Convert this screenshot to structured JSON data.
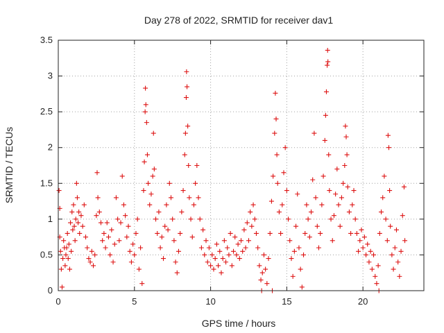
{
  "chart_data": {
    "type": "scatter",
    "title": "Day 278 of 2022, SRMTID for receiver dav1",
    "xlabel": "GPS time / hours",
    "ylabel": "SRMTID / TECUs",
    "xlim": [
      0,
      24
    ],
    "ylim": [
      0,
      3.5
    ],
    "xticks": [
      0,
      5,
      10,
      15,
      20
    ],
    "xtick_labels": [
      "0",
      "5",
      "10",
      "15",
      "20"
    ],
    "yticks": [
      0,
      0.5,
      1,
      1.5,
      2,
      2.5,
      3,
      3.5
    ],
    "ytick_labels": [
      "0",
      "0.5",
      "1",
      "1.5",
      "2",
      "2.5",
      "3",
      "3.5"
    ],
    "grid": true,
    "marker": "+",
    "color": "#dd1111",
    "series": [
      {
        "name": "SRMTID",
        "points": [
          [
            0.05,
            1.4
          ],
          [
            0.1,
            1.15
          ],
          [
            0.1,
            0.75
          ],
          [
            0.15,
            0.55
          ],
          [
            0.2,
            0.3
          ],
          [
            0.25,
            0.05
          ],
          [
            0.3,
            0.45
          ],
          [
            0.35,
            0.7
          ],
          [
            0.4,
            0.6
          ],
          [
            0.45,
            0.35
          ],
          [
            0.5,
            0.5
          ],
          [
            0.55,
            0.6
          ],
          [
            0.6,
            0.8
          ],
          [
            0.65,
            0.45
          ],
          [
            0.7,
            0.65
          ],
          [
            0.75,
            0.3
          ],
          [
            0.8,
            0.95
          ],
          [
            0.85,
            0.55
          ],
          [
            0.9,
            1.1
          ],
          [
            0.95,
            0.85
          ],
          [
            1.0,
            1.2
          ],
          [
            1.05,
            0.9
          ],
          [
            1.1,
            0.7
          ],
          [
            1.15,
            1.0
          ],
          [
            1.2,
            1.5
          ],
          [
            1.25,
            1.3
          ],
          [
            1.3,
            0.95
          ],
          [
            1.35,
            1.1
          ],
          [
            1.4,
            0.8
          ],
          [
            1.5,
            1.05
          ],
          [
            1.6,
            0.9
          ],
          [
            1.7,
            1.2
          ],
          [
            1.8,
            0.75
          ],
          [
            1.9,
            0.6
          ],
          [
            2.0,
            0.45
          ],
          [
            2.1,
            0.4
          ],
          [
            2.2,
            0.55
          ],
          [
            2.3,
            0.35
          ],
          [
            2.4,
            0.5
          ],
          [
            2.5,
            1.05
          ],
          [
            2.55,
            1.65
          ],
          [
            2.6,
            1.3
          ],
          [
            2.7,
            1.1
          ],
          [
            2.8,
            0.95
          ],
          [
            2.9,
            0.7
          ],
          [
            3.0,
            0.8
          ],
          [
            3.1,
            0.6
          ],
          [
            3.2,
            0.95
          ],
          [
            3.3,
            0.75
          ],
          [
            3.4,
            0.5
          ],
          [
            3.5,
            0.85
          ],
          [
            3.6,
            0.4
          ],
          [
            3.7,
            0.65
          ],
          [
            3.8,
            1.3
          ],
          [
            3.9,
            1.0
          ],
          [
            4.0,
            0.7
          ],
          [
            4.1,
            0.95
          ],
          [
            4.2,
            1.6
          ],
          [
            4.3,
            1.2
          ],
          [
            4.4,
            1.05
          ],
          [
            4.5,
            0.75
          ],
          [
            4.6,
            0.9
          ],
          [
            4.7,
            0.55
          ],
          [
            4.8,
            0.4
          ],
          [
            4.9,
            0.65
          ],
          [
            5.0,
            0.5
          ],
          [
            5.1,
            0.8
          ],
          [
            5.2,
            1.0
          ],
          [
            5.3,
            0.3
          ],
          [
            5.4,
            0.6
          ],
          [
            5.5,
            0.1
          ],
          [
            5.6,
            1.4
          ],
          [
            5.65,
            1.8
          ],
          [
            5.7,
            2.5
          ],
          [
            5.72,
            2.83
          ],
          [
            5.75,
            2.6
          ],
          [
            5.8,
            2.35
          ],
          [
            5.85,
            1.9
          ],
          [
            5.9,
            1.5
          ],
          [
            6.0,
            1.2
          ],
          [
            6.1,
            1.35
          ],
          [
            6.2,
            1.6
          ],
          [
            6.25,
            2.2
          ],
          [
            6.3,
            1.7
          ],
          [
            6.4,
            1.0
          ],
          [
            6.5,
            0.8
          ],
          [
            6.6,
            1.1
          ],
          [
            6.7,
            0.6
          ],
          [
            6.8,
            0.75
          ],
          [
            6.9,
            0.45
          ],
          [
            7.0,
            0.9
          ],
          [
            7.1,
            1.2
          ],
          [
            7.2,
            0.85
          ],
          [
            7.3,
            1.5
          ],
          [
            7.4,
            1.3
          ],
          [
            7.5,
            1.0
          ],
          [
            7.6,
            0.7
          ],
          [
            7.7,
            0.4
          ],
          [
            7.8,
            0.25
          ],
          [
            7.9,
            0.55
          ],
          [
            8.0,
            0.8
          ],
          [
            8.1,
            1.1
          ],
          [
            8.2,
            1.4
          ],
          [
            8.3,
            1.9
          ],
          [
            8.35,
            2.2
          ],
          [
            8.4,
            2.7
          ],
          [
            8.42,
            3.06
          ],
          [
            8.45,
            2.85
          ],
          [
            8.5,
            2.3
          ],
          [
            8.55,
            1.75
          ],
          [
            8.6,
            1.3
          ],
          [
            8.7,
            1.0
          ],
          [
            8.8,
            0.75
          ],
          [
            8.9,
            1.2
          ],
          [
            9.0,
            1.5
          ],
          [
            9.1,
            1.75
          ],
          [
            9.2,
            1.3
          ],
          [
            9.3,
            1.0
          ],
          [
            9.4,
            0.6
          ],
          [
            9.5,
            0.85
          ],
          [
            9.6,
            0.5
          ],
          [
            9.7,
            0.7
          ],
          [
            9.8,
            0.4
          ],
          [
            9.9,
            0.6
          ],
          [
            10.0,
            0.35
          ],
          [
            10.1,
            0.5
          ],
          [
            10.2,
            0.3
          ],
          [
            10.3,
            0.45
          ],
          [
            10.4,
            0.65
          ],
          [
            10.5,
            0.35
          ],
          [
            10.6,
            0.55
          ],
          [
            10.7,
            0.25
          ],
          [
            10.8,
            0.45
          ],
          [
            10.9,
            0.7
          ],
          [
            11.0,
            0.4
          ],
          [
            11.1,
            0.6
          ],
          [
            11.2,
            0.5
          ],
          [
            11.3,
            0.8
          ],
          [
            11.4,
            0.35
          ],
          [
            11.5,
            0.55
          ],
          [
            11.6,
            0.75
          ],
          [
            11.7,
            0.5
          ],
          [
            11.8,
            0.65
          ],
          [
            11.9,
            0.45
          ],
          [
            12.0,
            0.7
          ],
          [
            12.1,
            0.55
          ],
          [
            12.2,
            0.85
          ],
          [
            12.3,
            0.6
          ],
          [
            12.4,
            0.95
          ],
          [
            12.5,
            0.7
          ],
          [
            12.6,
            1.1
          ],
          [
            12.7,
            0.9
          ],
          [
            12.8,
            1.2
          ],
          [
            12.9,
            1.0
          ],
          [
            13.0,
            0.8
          ],
          [
            13.1,
            0.6
          ],
          [
            13.2,
            0.35
          ],
          [
            13.3,
            0.15
          ],
          [
            13.35,
            0.0
          ],
          [
            13.4,
            0.25
          ],
          [
            13.5,
            0.5
          ],
          [
            13.6,
            0.3
          ],
          [
            13.7,
            0.1
          ],
          [
            13.8,
            0.45
          ],
          [
            13.9,
            0.8
          ],
          [
            14.0,
            1.25
          ],
          [
            14.05,
            0.0
          ],
          [
            14.1,
            1.6
          ],
          [
            14.2,
            2.2
          ],
          [
            14.25,
            2.76
          ],
          [
            14.3,
            2.4
          ],
          [
            14.35,
            1.9
          ],
          [
            14.4,
            1.5
          ],
          [
            14.5,
            1.1
          ],
          [
            14.6,
            0.8
          ],
          [
            14.7,
            1.2
          ],
          [
            14.8,
            1.65
          ],
          [
            14.9,
            2.0
          ],
          [
            15.0,
            1.4
          ],
          [
            15.1,
            1.0
          ],
          [
            15.2,
            0.7
          ],
          [
            15.3,
            0.45
          ],
          [
            15.4,
            0.2
          ],
          [
            15.5,
            0.55
          ],
          [
            15.6,
            0.9
          ],
          [
            15.7,
            1.35
          ],
          [
            15.8,
            0.6
          ],
          [
            15.9,
            0.3
          ],
          [
            16.0,
            0.05
          ],
          [
            16.1,
            0.5
          ],
          [
            16.2,
            0.8
          ],
          [
            16.3,
            1.2
          ],
          [
            16.4,
            1.0
          ],
          [
            16.5,
            0.75
          ],
          [
            16.6,
            1.1
          ],
          [
            16.7,
            1.55
          ],
          [
            16.8,
            2.2
          ],
          [
            16.9,
            1.3
          ],
          [
            17.0,
            0.9
          ],
          [
            17.1,
            0.6
          ],
          [
            17.2,
            0.8
          ],
          [
            17.3,
            1.2
          ],
          [
            17.4,
            1.6
          ],
          [
            17.5,
            2.1
          ],
          [
            17.55,
            2.45
          ],
          [
            17.6,
            2.78
          ],
          [
            17.65,
            3.15
          ],
          [
            17.68,
            3.36
          ],
          [
            17.7,
            3.2
          ],
          [
            17.75,
            1.9
          ],
          [
            17.8,
            1.4
          ],
          [
            17.9,
            1.0
          ],
          [
            18.0,
            0.7
          ],
          [
            18.1,
            1.05
          ],
          [
            18.2,
            1.35
          ],
          [
            18.3,
            1.7
          ],
          [
            18.4,
            1.2
          ],
          [
            18.5,
            0.9
          ],
          [
            18.6,
            1.3
          ],
          [
            18.7,
            1.5
          ],
          [
            18.8,
            1.75
          ],
          [
            18.85,
            2.3
          ],
          [
            18.9,
            2.15
          ],
          [
            18.95,
            1.9
          ],
          [
            19.0,
            1.45
          ],
          [
            19.1,
            1.1
          ],
          [
            19.2,
            0.8
          ],
          [
            19.3,
            1.2
          ],
          [
            19.4,
            1.4
          ],
          [
            19.5,
            1.0
          ],
          [
            19.6,
            0.8
          ],
          [
            19.7,
            0.55
          ],
          [
            19.8,
            0.7
          ],
          [
            19.9,
            0.85
          ],
          [
            20.0,
            0.6
          ],
          [
            20.1,
            0.75
          ],
          [
            20.2,
            0.5
          ],
          [
            20.3,
            0.65
          ],
          [
            20.4,
            0.4
          ],
          [
            20.5,
            0.55
          ],
          [
            20.6,
            0.3
          ],
          [
            20.7,
            0.5
          ],
          [
            20.8,
            0.2
          ],
          [
            20.9,
            0.1
          ],
          [
            21.0,
            0.35
          ],
          [
            21.05,
            0.0
          ],
          [
            21.1,
            0.8
          ],
          [
            21.2,
            1.1
          ],
          [
            21.3,
            1.3
          ],
          [
            21.4,
            1.6
          ],
          [
            21.5,
            1.0
          ],
          [
            21.6,
            0.7
          ],
          [
            21.65,
            2.17
          ],
          [
            21.7,
            2.0
          ],
          [
            21.75,
            1.4
          ],
          [
            21.8,
            0.9
          ],
          [
            21.9,
            0.5
          ],
          [
            22.0,
            0.3
          ],
          [
            22.1,
            0.6
          ],
          [
            22.2,
            0.85
          ],
          [
            22.3,
            0.4
          ],
          [
            22.4,
            0.2
          ],
          [
            22.5,
            0.55
          ],
          [
            22.6,
            1.05
          ],
          [
            22.7,
            1.45
          ],
          [
            22.75,
            0.7
          ]
        ]
      }
    ]
  }
}
